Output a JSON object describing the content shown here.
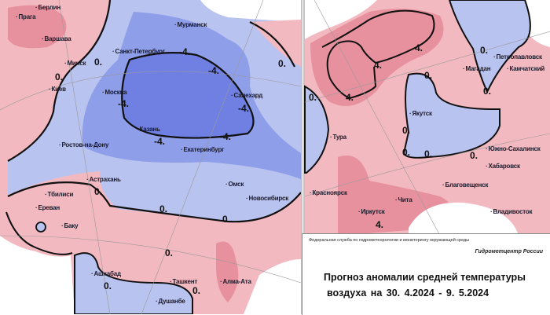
{
  "colors": {
    "warm_light": "#f3b9c1",
    "warm_dark": "#e8919e",
    "cold_light": "#b9c3f0",
    "cold_mid": "#8e9ee9",
    "cold_dark": "#6f80e2",
    "contour": "#111111"
  },
  "left_map": {
    "cities": [
      "Берлин",
      "Прага",
      "Варшава",
      "Мурманск",
      "Санкт-Петербург",
      "Минск",
      "Киев",
      "Москва",
      "Салехард",
      "Казань",
      "Ростов-на-Дону",
      "Екатеринбург",
      "Астрахань",
      "Омск",
      "Тбилиси",
      "Новосибирск",
      "Ереван",
      "Баку",
      "Ашхабад",
      "Ташкент",
      "Алма-Ата",
      "Душанбе"
    ],
    "contour_labels": [
      "-4.",
      "-4.",
      "-4.",
      "-4.",
      "-4.",
      "-4.",
      "0.",
      "0.",
      "0.",
      "0.",
      "0.",
      "0.",
      "0.",
      "0.",
      "0."
    ]
  },
  "right_map": {
    "cities": [
      "Петропавловск",
      "Камчатский",
      "Магадан",
      "Якутск",
      "Тура",
      "Южно-Сахалинск",
      "Хабаровск",
      "Благовещенск",
      "Красноярск",
      "Чита",
      "Иркутск",
      "Владивосток"
    ],
    "contour_labels": [
      "4.",
      "4.",
      "4.",
      "0.",
      "0.",
      "0.",
      "0.",
      "0.",
      "0.",
      "0.",
      "0.",
      "4."
    ]
  },
  "info": {
    "agency": "Федеральная служба по гидрометеорологии и мониторингу окружающей среды",
    "center": "Гидрометцентр России",
    "title_line1": "Прогноз аномалии средней температуры",
    "title_line2": "воздуха на   30. 4.2024 -  9. 5.2024"
  }
}
